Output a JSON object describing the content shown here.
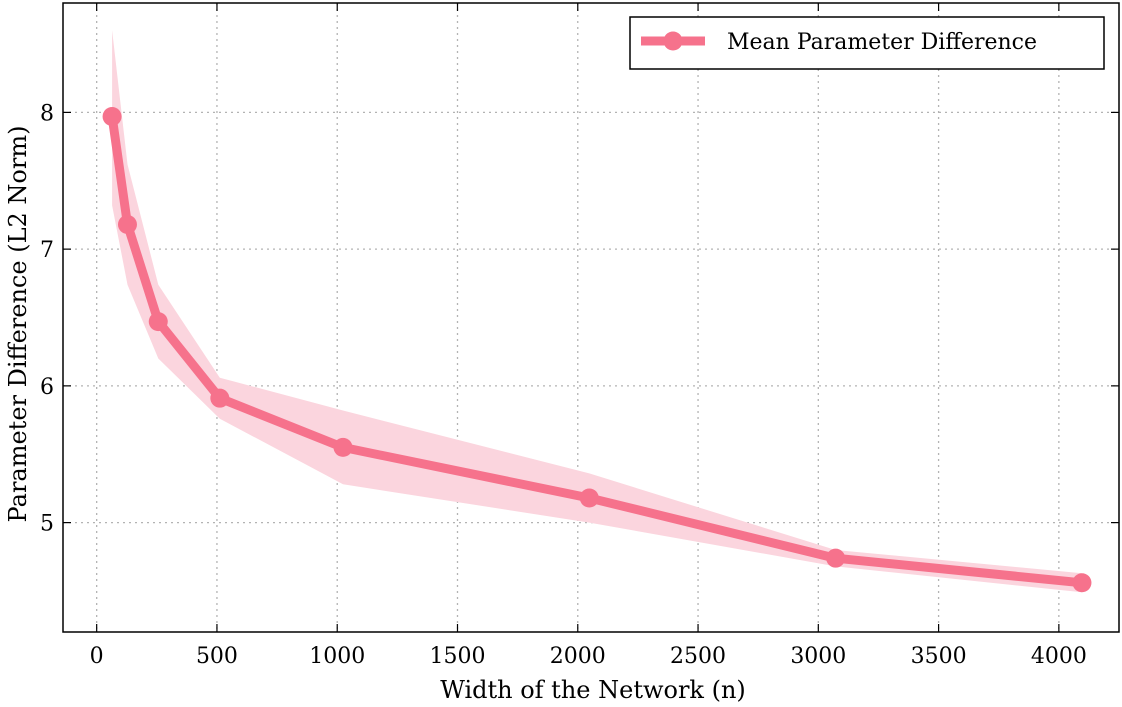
{
  "chart_data": {
    "type": "line",
    "xlabel": "Width of the Network (n)",
    "ylabel": "Parameter Difference (L2 Norm)",
    "xlim": [
      -140,
      4250
    ],
    "ylim": [
      4.2,
      8.8
    ],
    "xticks": [
      0,
      500,
      1000,
      1500,
      2000,
      2500,
      3000,
      3500,
      4000
    ],
    "yticks": [
      5,
      6,
      7,
      8
    ],
    "grid": true,
    "legend_position": "top-right",
    "series": [
      {
        "name": "Mean Parameter Difference",
        "color": "#f6728c",
        "band_color": "#fbd5de",
        "x": [
          64,
          128,
          256,
          512,
          1024,
          2048,
          3072,
          4096
        ],
        "y": [
          7.97,
          7.18,
          6.47,
          5.91,
          5.55,
          5.18,
          4.74,
          4.56
        ],
        "lower": [
          7.32,
          6.74,
          6.2,
          5.76,
          5.28,
          5.0,
          4.68,
          4.49
        ],
        "upper": [
          8.6,
          7.62,
          6.74,
          6.06,
          5.82,
          5.36,
          4.8,
          4.63
        ]
      }
    ]
  }
}
